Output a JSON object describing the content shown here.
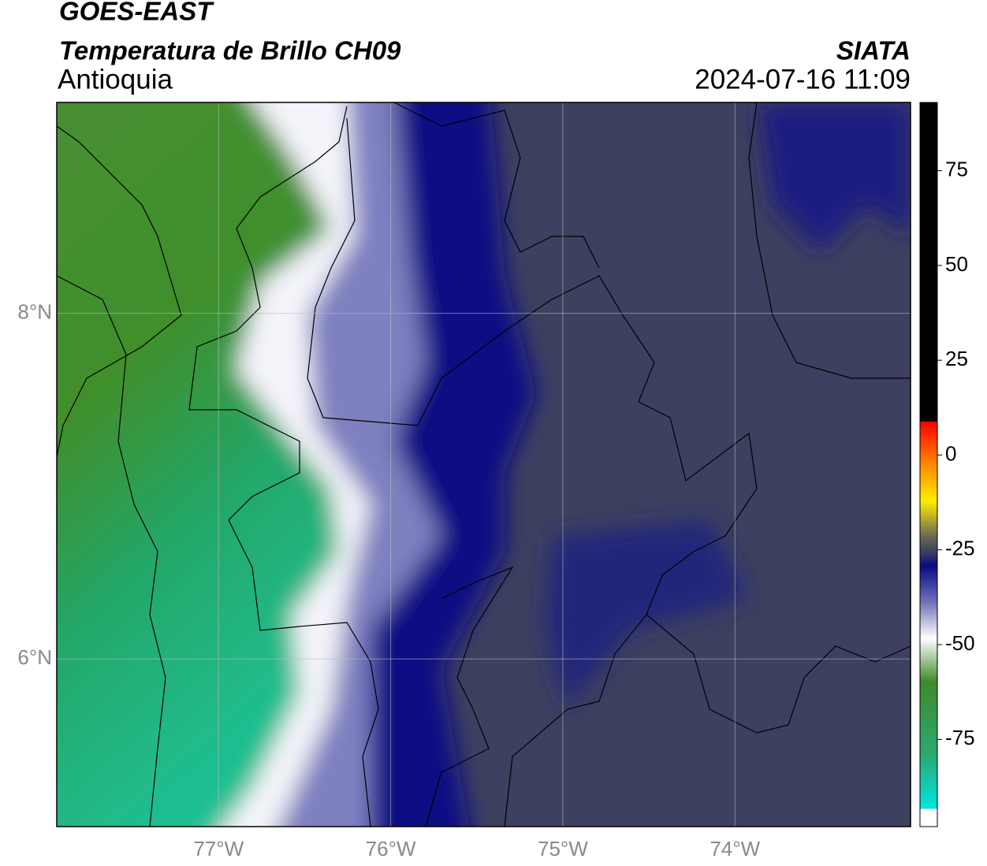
{
  "header": {
    "title": "GOES-EAST",
    "subtitle": "Temperatura de Brillo CH09",
    "region": "Antioquia",
    "source": "SIATA",
    "datetime": "2024-07-16 11:09"
  },
  "map": {
    "xlim": [
      -77.94,
      -72.98
    ],
    "ylim": [
      5.03,
      9.22
    ],
    "xticks": [
      {
        "value": -77,
        "label": "77°W"
      },
      {
        "value": -76,
        "label": "76°W"
      },
      {
        "value": -75,
        "label": "75°W"
      },
      {
        "value": -74,
        "label": "74°W"
      }
    ],
    "yticks": [
      {
        "value": 6,
        "label": "6°N"
      },
      {
        "value": 8,
        "label": "8°N"
      }
    ]
  },
  "colorbar": {
    "lim": [
      -98,
      93
    ],
    "ticks": [
      75,
      50,
      25,
      0,
      -25,
      -50,
      -75
    ]
  }
}
